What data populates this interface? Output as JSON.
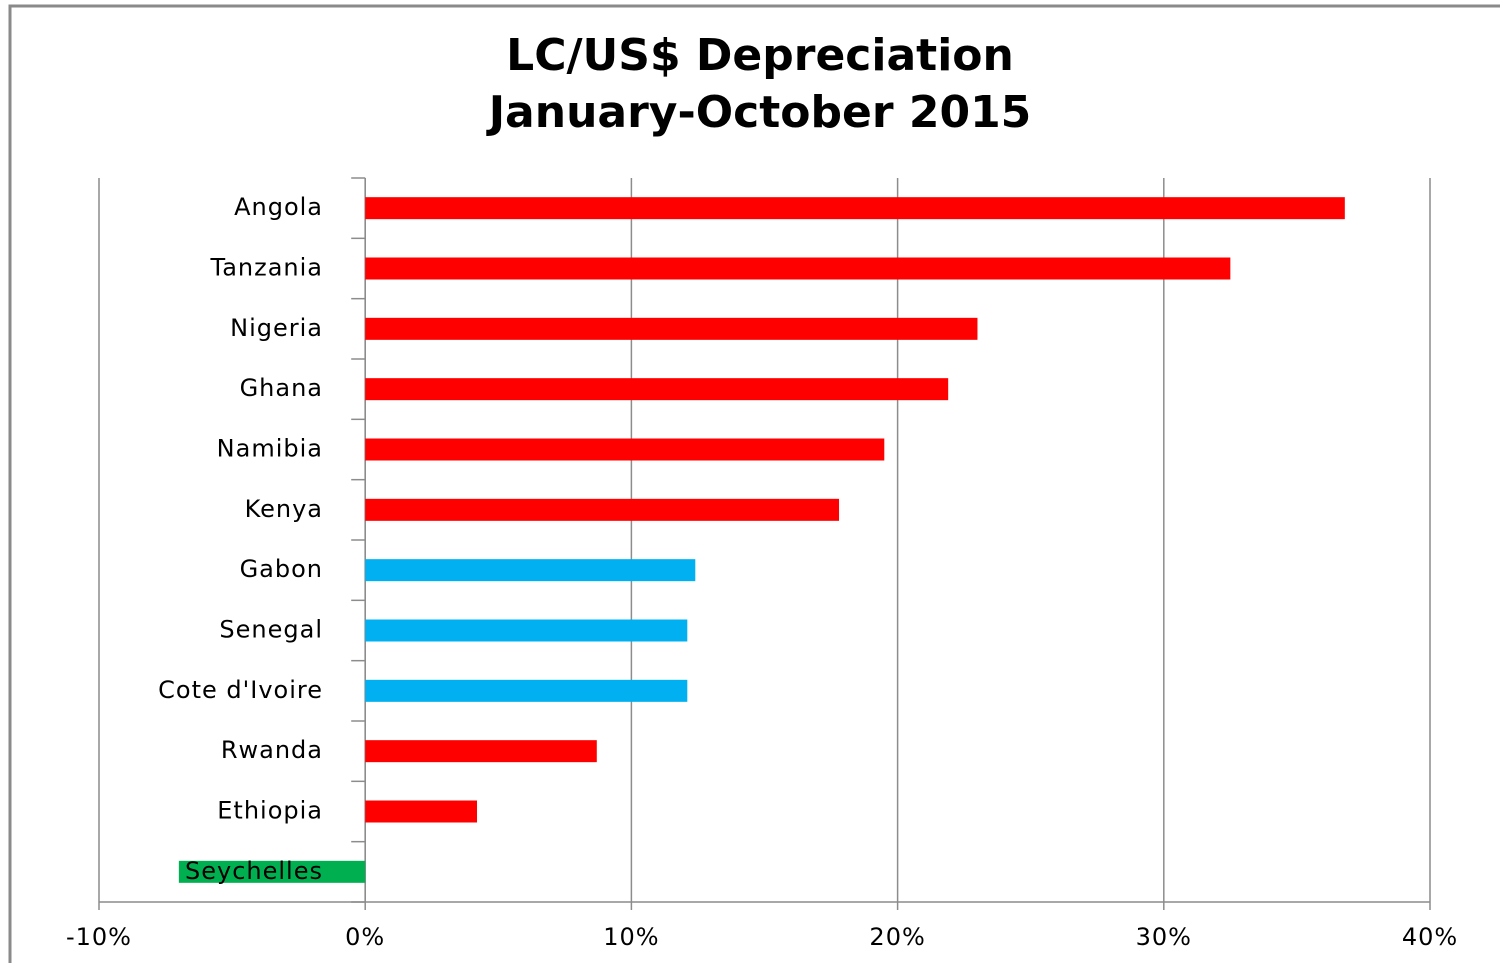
{
  "chart_data": {
    "type": "bar",
    "orientation": "horizontal",
    "title": [
      "LC/US$ Depreciation",
      "January-October 2015"
    ],
    "categories": [
      "Angola",
      "Tanzania",
      "Nigeria",
      "Ghana",
      "Namibia",
      "Kenya",
      "Gabon",
      "Senegal",
      "Cote d'Ivoire",
      "Rwanda",
      "Ethiopia",
      "Seychelles"
    ],
    "values": [
      36.8,
      32.5,
      23.0,
      21.9,
      19.5,
      17.8,
      12.4,
      12.1,
      12.1,
      8.7,
      4.2,
      -7.0
    ],
    "colors": [
      "#ff0000",
      "#ff0000",
      "#ff0000",
      "#ff0000",
      "#ff0000",
      "#ff0000",
      "#00b0f0",
      "#00b0f0",
      "#00b0f0",
      "#ff0000",
      "#ff0000",
      "#00b050"
    ],
    "xlim": [
      -10,
      40
    ],
    "xticks": [
      {
        "value": -10,
        "label": "-10%"
      },
      {
        "value": 0,
        "label": "0%"
      },
      {
        "value": 10,
        "label": "10%"
      },
      {
        "value": 20,
        "label": "20%"
      },
      {
        "value": 30,
        "label": "30%"
      },
      {
        "value": 40,
        "label": "40%"
      }
    ],
    "grid": true
  }
}
